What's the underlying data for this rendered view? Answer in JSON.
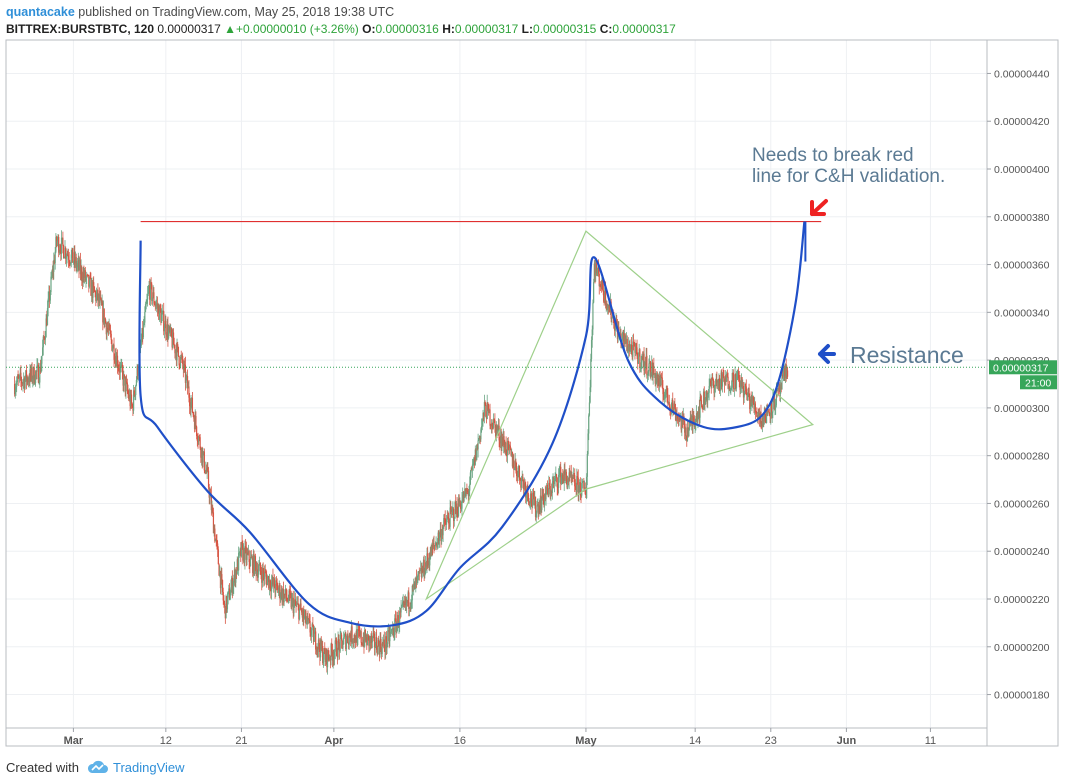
{
  "header": {
    "username": "quantacake",
    "published_text": "published on TradingView.com, May 25, 2018 19:38 UTC",
    "symbol": "BITTREX:BURSTBTC, 120",
    "price": "0.00000317",
    "change": "+0.00000010 (+3.26%)",
    "ohlc": [
      {
        "label": "O:",
        "value": "0.00000316"
      },
      {
        "label": "H:",
        "value": "0.00000317"
      },
      {
        "label": "L:",
        "value": "0.00000315"
      },
      {
        "label": "C:",
        "value": "0.00000317"
      }
    ]
  },
  "footer": {
    "created_with": "Created with",
    "brand": "TradingView"
  },
  "colors": {
    "up": "#6ba583",
    "down": "#d75442",
    "cup_line": "#1f4fc8",
    "triangle": "#9ed08a",
    "resistance": "#e03030",
    "current_price_tag": "#37a65a"
  },
  "chart_data": {
    "type": "candlestick",
    "y_axis_ticks": [
      "0.00000440",
      "0.00000420",
      "0.00000400",
      "0.00000380",
      "0.00000360",
      "0.00000340",
      "0.00000320",
      "0.00000300",
      "0.00000280",
      "0.00000260",
      "0.00000240",
      "0.00000220",
      "0.00000200",
      "0.00000180"
    ],
    "x_axis_ticks": [
      "Mar",
      "12",
      "21",
      "Apr",
      "16",
      "May",
      "14",
      "23",
      "Jun",
      "11"
    ],
    "ylim": [
      1.66e-06,
      4.54e-06
    ],
    "current_price": {
      "value": 3.17e-06,
      "label": "0.00000317",
      "countdown": "21:00"
    },
    "resistance_level": 3.78e-06,
    "annotations": [
      {
        "text": "Needs to break red line for C&H validation.",
        "lines": [
          "Needs to break red",
          "line for C&H validation."
        ],
        "color": "#5b7a93"
      },
      {
        "text": "Resistance",
        "color": "#5b7a93"
      }
    ],
    "price_path": [
      {
        "date": "Feb 22",
        "price": 3.1e-06
      },
      {
        "date": "Feb 25",
        "price": 3.15e-06
      },
      {
        "date": "Feb 27",
        "price": 3.7e-06
      },
      {
        "date": "Mar 1",
        "price": 3.62e-06
      },
      {
        "date": "Mar 4",
        "price": 3.45e-06
      },
      {
        "date": "Mar 8",
        "price": 3e-06
      },
      {
        "date": "Mar 10",
        "price": 3.5e-06
      },
      {
        "date": "Mar 14",
        "price": 3.18e-06
      },
      {
        "date": "Mar 17",
        "price": 2.7e-06
      },
      {
        "date": "Mar 19",
        "price": 2.15e-06
      },
      {
        "date": "Mar 21",
        "price": 2.4e-06
      },
      {
        "date": "Mar 25",
        "price": 2.25e-06
      },
      {
        "date": "Mar 28",
        "price": 2.15e-06
      },
      {
        "date": "Mar 31",
        "price": 1.95e-06
      },
      {
        "date": "Apr 3",
        "price": 2.05e-06
      },
      {
        "date": "Apr 7",
        "price": 2e-06
      },
      {
        "date": "Apr 10",
        "price": 2.2e-06
      },
      {
        "date": "Apr 14",
        "price": 2.5e-06
      },
      {
        "date": "Apr 17",
        "price": 2.65e-06
      },
      {
        "date": "Apr 19",
        "price": 3e-06
      },
      {
        "date": "Apr 22",
        "price": 2.8e-06
      },
      {
        "date": "Apr 25",
        "price": 2.58e-06
      },
      {
        "date": "Apr 28",
        "price": 2.72e-06
      },
      {
        "date": "May 1",
        "price": 2.65e-06
      },
      {
        "date": "May 2",
        "price": 3.6e-06
      },
      {
        "date": "May 5",
        "price": 3.3e-06
      },
      {
        "date": "May 9",
        "price": 3.15e-06
      },
      {
        "date": "May 13",
        "price": 2.9e-06
      },
      {
        "date": "May 16",
        "price": 3.1e-06
      },
      {
        "date": "May 19",
        "price": 3.12e-06
      },
      {
        "date": "May 22",
        "price": 2.95e-06
      },
      {
        "date": "May 24",
        "price": 3.06e-06
      },
      {
        "date": "May 25",
        "price": 3.17e-06
      }
    ],
    "drawings": {
      "resistance_line": {
        "from": "Mar 9",
        "to": "May 29",
        "price": 3.78e-06
      },
      "cup_and_handle_curve": [
        {
          "date": "Mar 9",
          "price": 3.7e-06
        },
        {
          "date": "Mar 9",
          "price": 3.05e-06
        },
        {
          "date": "Mar 11",
          "price": 2.92e-06
        },
        {
          "date": "Mar 17",
          "price": 2.65e-06
        },
        {
          "date": "Mar 22",
          "price": 2.48e-06
        },
        {
          "date": "Mar 29",
          "price": 2.18e-06
        },
        {
          "date": "Apr 3",
          "price": 2.1e-06
        },
        {
          "date": "Apr 8",
          "price": 2.09e-06
        },
        {
          "date": "Apr 12",
          "price": 2.15e-06
        },
        {
          "date": "Apr 16",
          "price": 2.33e-06
        },
        {
          "date": "Apr 21",
          "price": 2.5e-06
        },
        {
          "date": "Apr 27",
          "price": 2.85e-06
        },
        {
          "date": "May 1",
          "price": 3.3e-06
        },
        {
          "date": "May 2",
          "price": 3.63e-06
        },
        {
          "date": "May 6",
          "price": 3.2e-06
        },
        {
          "date": "May 10",
          "price": 3.02e-06
        },
        {
          "date": "May 15",
          "price": 2.92e-06
        },
        {
          "date": "May 19",
          "price": 2.92e-06
        },
        {
          "date": "May 22",
          "price": 2.97e-06
        },
        {
          "date": "May 24",
          "price": 3.12e-06
        },
        {
          "date": "May 26",
          "price": 3.45e-06
        },
        {
          "date": "May 27",
          "price": 3.78e-06
        }
      ],
      "symmetrical_triangle": [
        {
          "date": "Apr 12",
          "price": 2.2e-06
        },
        {
          "date": "May 1",
          "price": 3.74e-06
        },
        {
          "date": "May 28",
          "price": 2.93e-06
        },
        {
          "date": "May 1",
          "price": 2.66e-06
        }
      ]
    }
  }
}
